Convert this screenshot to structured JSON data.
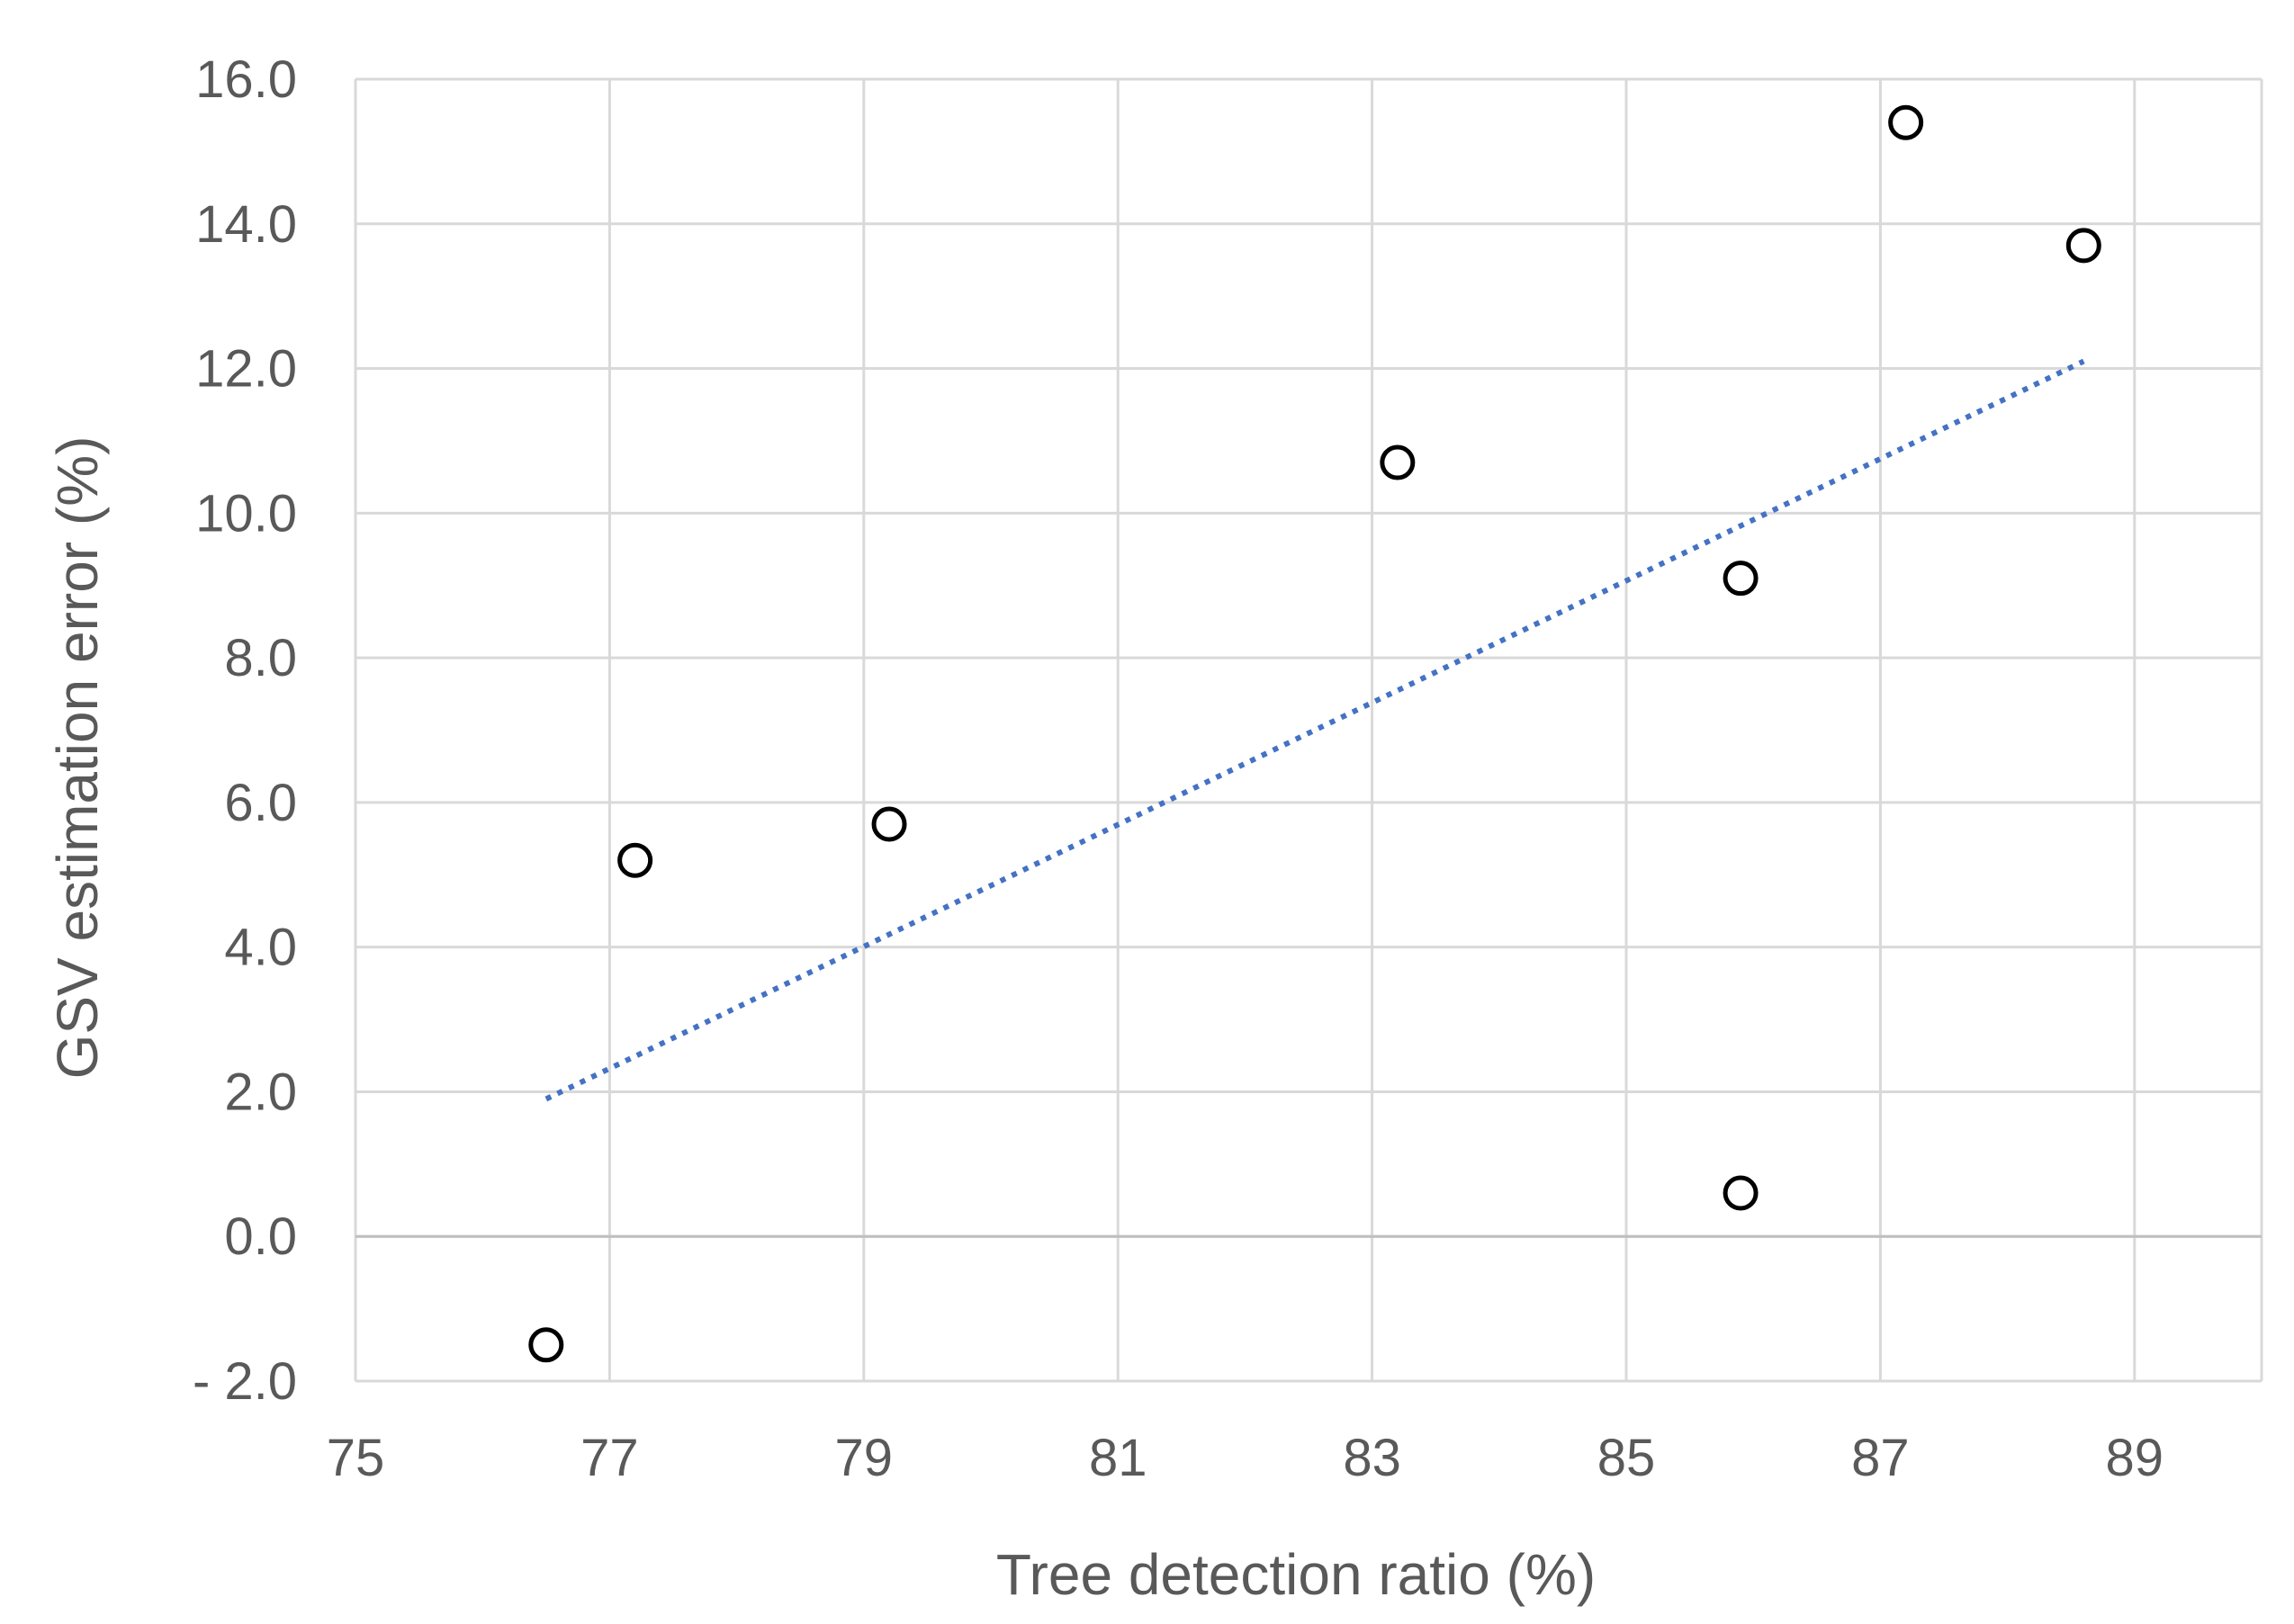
{
  "chart_data": {
    "type": "scatter",
    "title": "",
    "xlabel": "Tree detection ratio (%)",
    "ylabel": "GSV estimation error (%)",
    "xlim": [
      75,
      90
    ],
    "ylim": [
      -2.0,
      16.0
    ],
    "xticks": [
      75,
      77,
      79,
      81,
      83,
      85,
      87,
      89
    ],
    "xtick_labels": [
      "75",
      "77",
      "79",
      "81",
      "83",
      "85",
      "87",
      "89"
    ],
    "yticks": [
      -2.0,
      0.0,
      2.0,
      4.0,
      6.0,
      8.0,
      10.0,
      12.0,
      14.0,
      16.0
    ],
    "ytick_labels": [
      "- 2.0",
      "0.0",
      "2.0",
      "4.0",
      "6.0",
      "8.0",
      "10.0",
      "12.0",
      "14.0",
      "16.0"
    ],
    "grid": true,
    "legend": false,
    "series": [
      {
        "marker": "open-circle",
        "color": "#000000",
        "points": [
          {
            "x": 76.5,
            "y": -1.5
          },
          {
            "x": 77.2,
            "y": 5.2
          },
          {
            "x": 79.2,
            "y": 5.7
          },
          {
            "x": 83.2,
            "y": 10.7
          },
          {
            "x": 85.9,
            "y": 9.1
          },
          {
            "x": 85.9,
            "y": 0.6
          },
          {
            "x": 87.2,
            "y": 15.4
          },
          {
            "x": 88.6,
            "y": 13.7
          }
        ]
      }
    ],
    "trendline": {
      "style": "dotted",
      "color": "#4472C4",
      "x": [
        76.5,
        88.6
      ],
      "y": [
        1.9,
        12.1
      ]
    }
  }
}
